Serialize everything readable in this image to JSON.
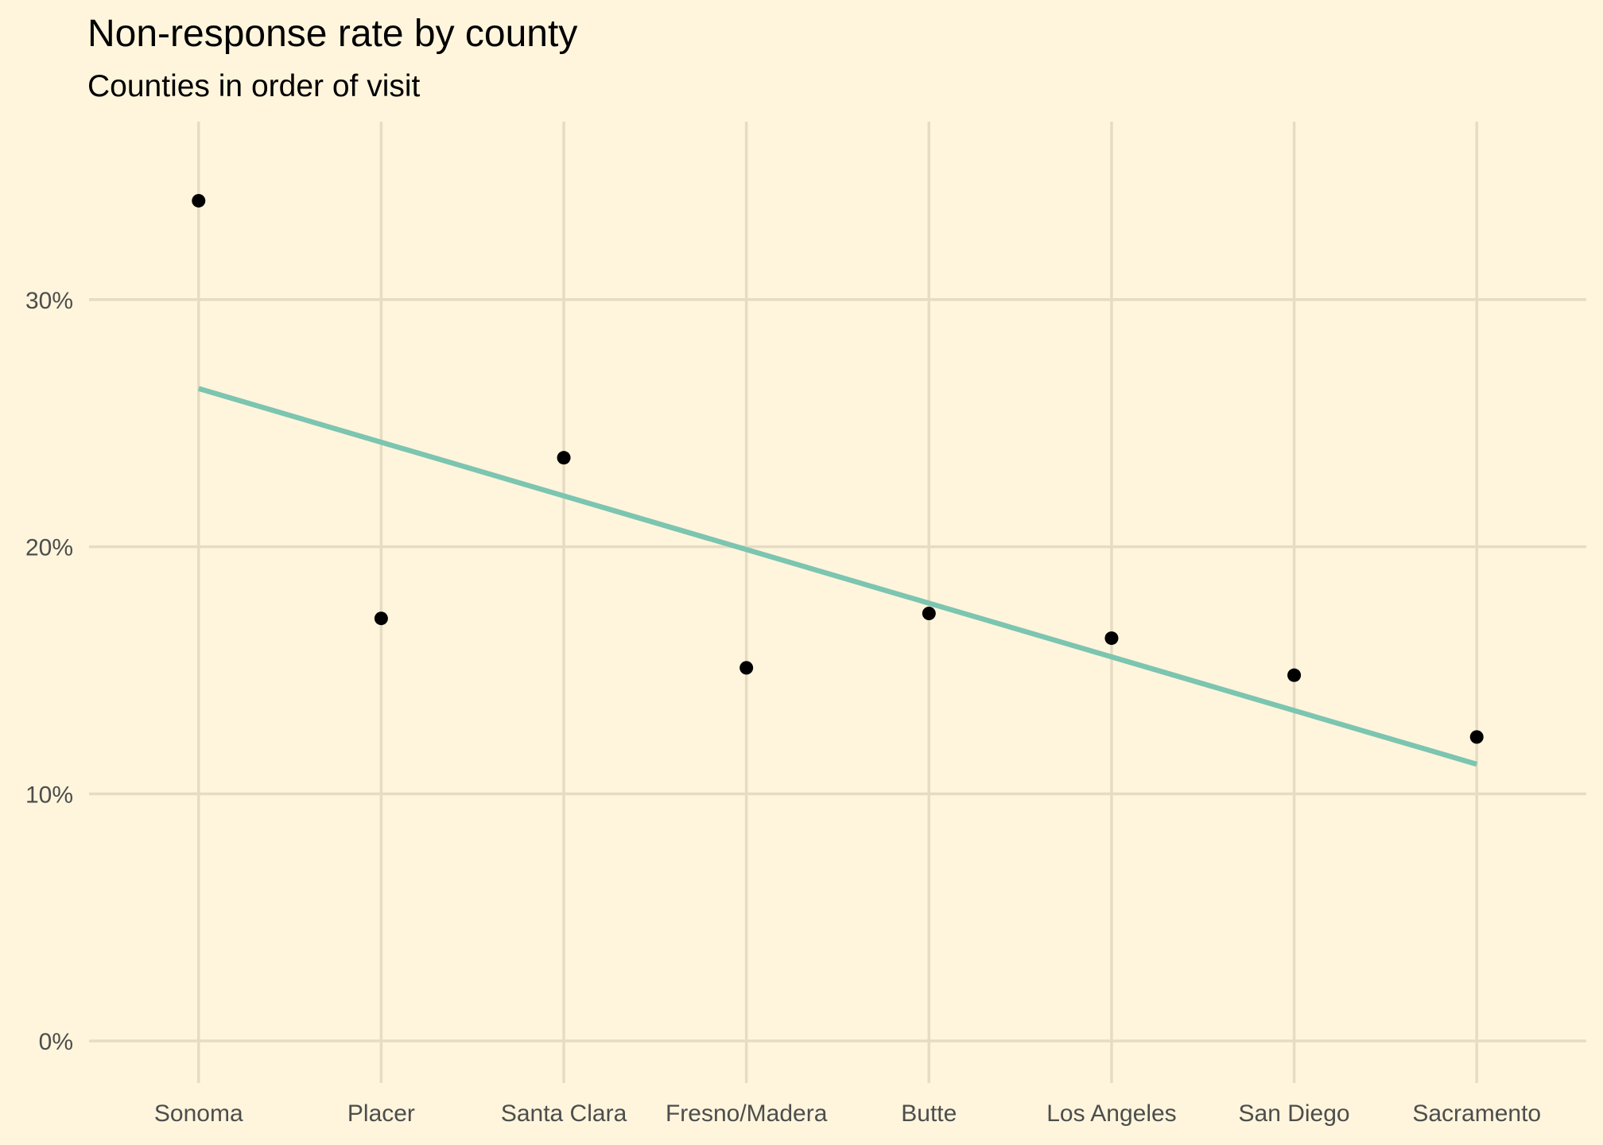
{
  "chart_data": {
    "type": "scatter",
    "title": "Non-response rate by county",
    "subtitle": "Counties in order of visit",
    "xlabel": "",
    "ylabel": "",
    "categories": [
      "Sonoma",
      "Placer",
      "Santa Clara",
      "Fresno/Madera",
      "Butte",
      "Los Angeles",
      "San Diego",
      "Sacramento"
    ],
    "series": [
      {
        "values": [
          34.0,
          17.1,
          23.6,
          15.1,
          17.3,
          16.3,
          14.8,
          12.3
        ]
      }
    ],
    "trend_line": {
      "type": "linear",
      "start_value": 26.4,
      "end_value": 11.2,
      "color": "#7CC5B0"
    },
    "yticks": [
      0,
      10,
      20,
      30
    ],
    "ytick_labels": [
      "0%",
      "10%",
      "20%",
      "30%"
    ],
    "ylim": [
      -1.7,
      37.2
    ],
    "grid": true,
    "legend": "none",
    "colors": {
      "background": "#FFF5DC",
      "gridline": "#E6DCC4",
      "point": "#000000",
      "trend": "#7CC5B0",
      "tick_text": "#4D4D4D",
      "title_text": "#000000"
    }
  }
}
